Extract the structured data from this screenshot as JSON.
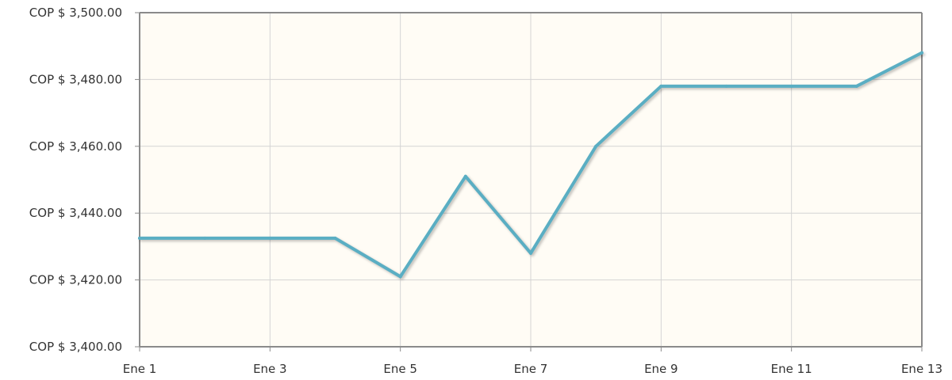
{
  "chart_data": {
    "type": "line",
    "title": "",
    "xlabel": "",
    "ylabel": "",
    "x_tick_labels": [
      "Ene 1",
      "Ene 3",
      "Ene 5",
      "Ene 7",
      "Ene 9",
      "Ene 11",
      "Ene 13"
    ],
    "y_tick_labels": [
      "COP $ 3,400.00",
      "COP $ 3,420.00",
      "COP $ 3,440.00",
      "COP $ 3,460.00",
      "COP $ 3,480.00",
      "COP $ 3,500.00"
    ],
    "y_ticks": [
      3400,
      3420,
      3440,
      3460,
      3480,
      3500
    ],
    "xlim": [
      1,
      13
    ],
    "ylim": [
      3400,
      3500
    ],
    "grid": true,
    "series": [
      {
        "x": [
          1,
          2,
          3,
          4,
          5,
          6,
          7,
          8,
          9,
          10,
          11,
          12,
          13
        ],
        "values": [
          3432.5,
          3432.5,
          3432.5,
          3432.5,
          3421,
          3451,
          3428,
          3460,
          3478,
          3478,
          3478,
          3478,
          3488
        ],
        "color": "#5aaec3"
      }
    ],
    "colors": {
      "plot_background": "#fffcf5",
      "grid": "#d4d4d4",
      "axis": "#8a8a8a",
      "text": "#333333"
    }
  }
}
